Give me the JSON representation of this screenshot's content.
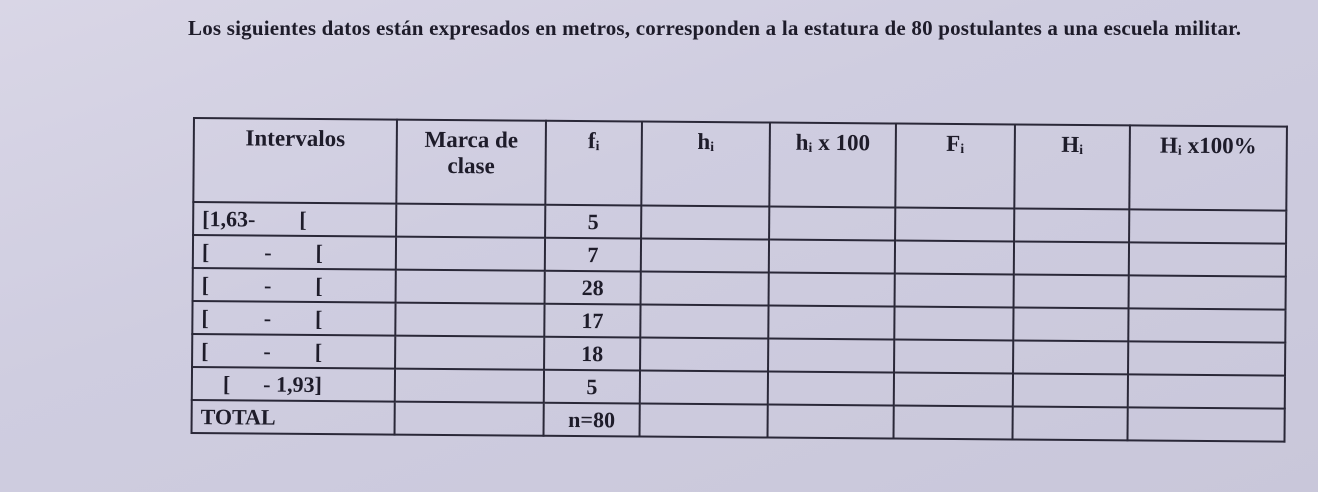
{
  "intro": "Los siguientes datos están expresados en metros, corresponden a la estatura de 80 postulantes a una escuela militar.",
  "table": {
    "headers": [
      "Intervalos",
      "Marca de clase",
      "fᵢ",
      "hᵢ",
      "hᵢ x 100",
      "Fᵢ",
      "Hᵢ",
      "Hᵢ x100%"
    ],
    "rows": [
      {
        "interval": "[1,63-        [",
        "fi": "5"
      },
      {
        "interval": "[          -        [",
        "fi": "7"
      },
      {
        "interval": "[          -        [",
        "fi": "28"
      },
      {
        "interval": "[          -        [",
        "fi": "17"
      },
      {
        "interval": "[          -        [",
        "fi": "18"
      },
      {
        "interval": "    [      - 1,93]",
        "fi": "5"
      },
      {
        "interval": "TOTAL",
        "fi": "n=80"
      }
    ]
  }
}
